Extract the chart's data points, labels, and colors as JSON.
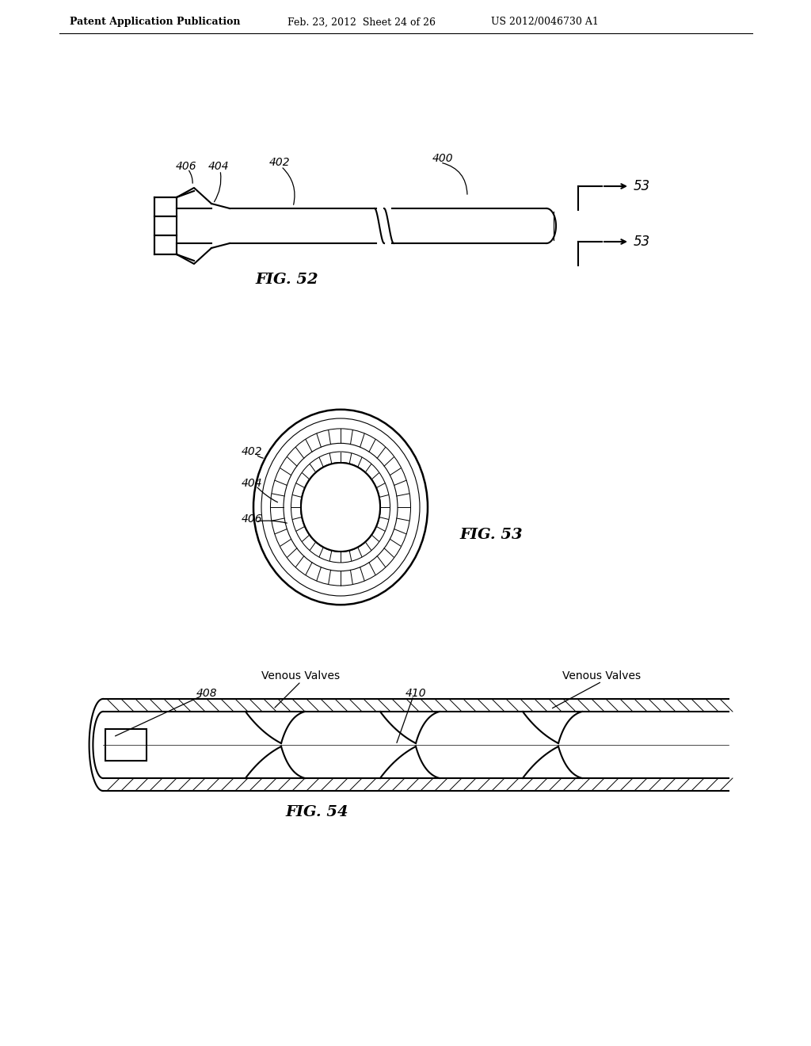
{
  "bg_color": "#ffffff",
  "header_left": "Patent Application Publication",
  "header_mid": "Feb. 23, 2012  Sheet 24 of 26",
  "header_right": "US 2012/0046730 A1",
  "fig52_label": "FIG. 52",
  "fig53_label": "FIG. 53",
  "fig54_label": "FIG. 54",
  "label_400": "400",
  "label_402_52": "402",
  "label_404_52": "404",
  "label_406_52": "406",
  "label_53a": "53",
  "label_53b": "53",
  "label_402_53": "402",
  "label_404_53": "404",
  "label_406_53": "406",
  "label_408": "408",
  "label_410": "410",
  "label_venous1": "Venous Valves",
  "label_venous2": "Venous Valves",
  "line_color": "#000000",
  "line_width": 1.5,
  "thin_line": 0.8
}
